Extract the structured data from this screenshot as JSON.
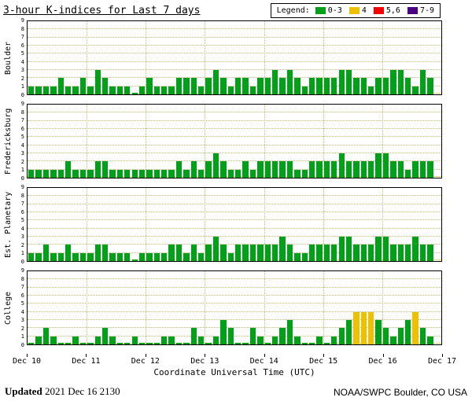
{
  "chart_data": {
    "type": "bar",
    "title": "3-hour K-indices for Last 7 days",
    "xlabel": "Coordinate Universal Time (UTC)",
    "x_tick_labels": [
      "Dec 10",
      "Dec 11",
      "Dec 12",
      "Dec 13",
      "Dec 14",
      "Dec 15",
      "Dec 16",
      "Dec 17"
    ],
    "y_tick_labels": [
      "0",
      "1",
      "2",
      "3",
      "4",
      "5",
      "6",
      "7",
      "8",
      "9"
    ],
    "ylim": [
      0,
      9
    ],
    "bars_per_day": 8,
    "interval_hours": 3,
    "grid": "dotted",
    "legend_position": "top-right",
    "legend": {
      "label": "Legend:",
      "items": [
        {
          "label": "0-3",
          "color": "#00A018"
        },
        {
          "label": "4",
          "color": "#EDC000"
        },
        {
          "label": "5,6",
          "color": "#F80000"
        },
        {
          "label": "7-9",
          "color": "#4B0082"
        }
      ]
    },
    "colors": {
      "green": "#00A018",
      "yellow": "#EDC000",
      "red": "#F80000",
      "purple": "#4B0082"
    },
    "panels": [
      {
        "station": "Boulder",
        "values": [
          1,
          1,
          1,
          1,
          2,
          1,
          1,
          2,
          1,
          3,
          2,
          1,
          1,
          1,
          0,
          1,
          2,
          1,
          1,
          1,
          2,
          2,
          2,
          1,
          2,
          3,
          2,
          1,
          2,
          2,
          1,
          2,
          2,
          3,
          2,
          3,
          2,
          1,
          2,
          2,
          2,
          2,
          3,
          3,
          2,
          2,
          1,
          2,
          2,
          3,
          3,
          2,
          1,
          3,
          2
        ]
      },
      {
        "station": "Fredericksburg",
        "values": [
          1,
          1,
          1,
          1,
          1,
          2,
          1,
          1,
          1,
          2,
          2,
          1,
          1,
          1,
          1,
          1,
          1,
          1,
          1,
          1,
          2,
          1,
          2,
          1,
          2,
          3,
          2,
          1,
          1,
          2,
          1,
          2,
          2,
          2,
          2,
          2,
          1,
          1,
          2,
          2,
          2,
          2,
          3,
          2,
          2,
          2,
          2,
          3,
          3,
          2,
          2,
          1,
          2,
          2,
          2
        ]
      },
      {
        "station": "Est. Planetary",
        "values": [
          1,
          1,
          2,
          1,
          1,
          2,
          1,
          1,
          1,
          2,
          2,
          1,
          1,
          1,
          0,
          1,
          1,
          1,
          1,
          2,
          2,
          1,
          2,
          1,
          2,
          3,
          2,
          1,
          2,
          2,
          2,
          2,
          2,
          2,
          3,
          2,
          1,
          1,
          2,
          2,
          2,
          2,
          3,
          3,
          2,
          2,
          2,
          3,
          3,
          2,
          2,
          2,
          3,
          2,
          2
        ]
      },
      {
        "station": "College",
        "values": [
          0,
          1,
          2,
          1,
          0,
          0,
          1,
          0,
          0,
          1,
          2,
          1,
          0,
          0,
          1,
          0,
          0,
          0,
          1,
          1,
          0,
          0,
          2,
          1,
          0,
          1,
          3,
          2,
          0,
          0,
          2,
          1,
          0,
          1,
          2,
          3,
          1,
          0,
          0,
          1,
          0,
          1,
          2,
          3,
          4,
          4,
          4,
          3,
          2,
          1,
          2,
          3,
          4,
          2,
          1
        ]
      }
    ]
  },
  "footer": {
    "updated_label": "Updated",
    "updated_value": "2021 Dec 16 2130",
    "credit": "NOAA/SWPC Boulder, CO USA"
  }
}
